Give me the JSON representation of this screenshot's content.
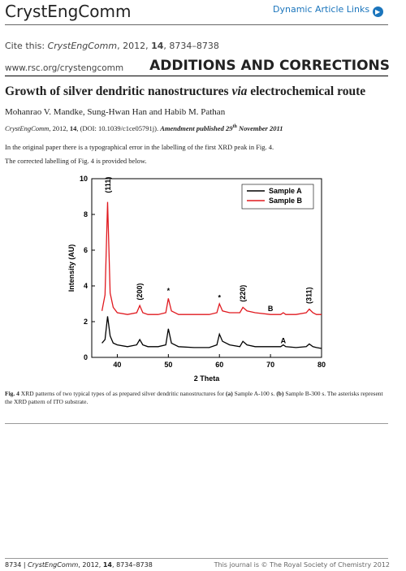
{
  "header": {
    "journal": "CrystEngComm",
    "links": "Dynamic Article Links"
  },
  "cite": [
    "Cite this: ",
    "CrystEngComm",
    ", 2012, ",
    "14",
    ", 8734–8738"
  ],
  "url": "www.rsc.org/crystengcomm",
  "section": "ADDITIONS AND CORRECTIONS",
  "title": [
    "Growth of silver dendritic nanostructures ",
    "via",
    " electrochemical route"
  ],
  "authors": "Mohanrao V. Mandke, Sung-Hwan Han and Habib M. Pathan",
  "reference": [
    "CrystEngComm",
    ", 2012, ",
    "14",
    ",  (DOI: 10.1039/c1ce05791j). ",
    "Amendment published 29",
    "th",
    " November 2011"
  ],
  "body": [
    "In the original paper there is a typographical error in the labelling of the first XRD peak in Fig. 4.",
    "The corrected labelling of Fig. 4 is provided below."
  ],
  "caption": [
    "Fig. 4",
    "  XRD patterns of two typical types of as prepared silver dendritic nanostructures for ",
    "(a)",
    " Sample A-100 s. ",
    "(b)",
    " Sample B-300 s. The asterisks represent the XRD pattern of ITO substrate."
  ],
  "footer": {
    "left": [
      "8734 | ",
      "CrystEngComm",
      ", 2012, ",
      "14",
      ", 8734–8738"
    ],
    "right": "This journal is © The Royal Society of Chemistry 2012"
  },
  "chart_data": {
    "type": "line",
    "x_label": "2 Theta",
    "y_label": "Intensity (AU)",
    "x": [
      37,
      37.6,
      38.1,
      38.6,
      39.2,
      40,
      42,
      43.8,
      44.4,
      45,
      46,
      48,
      49.5,
      50,
      50.6,
      52,
      55,
      58,
      59.5,
      60,
      60.6,
      62,
      64,
      64.6,
      65.4,
      67,
      70,
      72,
      72.5,
      73,
      75,
      77,
      77.6,
      78.3,
      79,
      80
    ],
    "series": [
      {
        "name": "Sample A",
        "color": "#000000",
        "values": [
          0.8,
          1.0,
          2.3,
          1.2,
          0.8,
          0.7,
          0.6,
          0.7,
          1.0,
          0.7,
          0.6,
          0.6,
          0.7,
          1.6,
          0.8,
          0.6,
          0.55,
          0.55,
          0.7,
          1.3,
          0.9,
          0.7,
          0.6,
          0.9,
          0.7,
          0.6,
          0.6,
          0.6,
          0.7,
          0.6,
          0.55,
          0.6,
          0.75,
          0.6,
          0.55,
          0.5
        ]
      },
      {
        "name": "Sample B",
        "color": "#e0191f",
        "values": [
          2.6,
          3.5,
          8.7,
          3.6,
          2.8,
          2.5,
          2.4,
          2.5,
          2.9,
          2.5,
          2.4,
          2.4,
          2.5,
          3.3,
          2.6,
          2.4,
          2.4,
          2.4,
          2.5,
          3.0,
          2.6,
          2.5,
          2.5,
          2.8,
          2.6,
          2.5,
          2.4,
          2.4,
          2.5,
          2.4,
          2.4,
          2.5,
          2.7,
          2.5,
          2.4,
          2.4
        ]
      }
    ],
    "annotations": [
      {
        "text": "(111)",
        "x": 38.2,
        "y": 9.2
      },
      {
        "text": "(200)",
        "x": 44.4,
        "y": 3.2
      },
      {
        "text": "*",
        "x": 50,
        "y": 3.6
      },
      {
        "text": "*",
        "x": 60,
        "y": 3.2
      },
      {
        "text": "(220)",
        "x": 64.6,
        "y": 3.1
      },
      {
        "text": "(311)",
        "x": 77.5,
        "y": 3.0
      },
      {
        "text": "B",
        "x": 70,
        "y": 2.6
      },
      {
        "text": "A",
        "x": 72.5,
        "y": 0.8
      }
    ],
    "xlim": [
      35,
      80
    ],
    "xticks": [
      40,
      50,
      60,
      70,
      80
    ],
    "ylim": [
      0,
      10
    ],
    "yticks": [
      0,
      2,
      4,
      6,
      8,
      10
    ],
    "legend": "upper right"
  }
}
